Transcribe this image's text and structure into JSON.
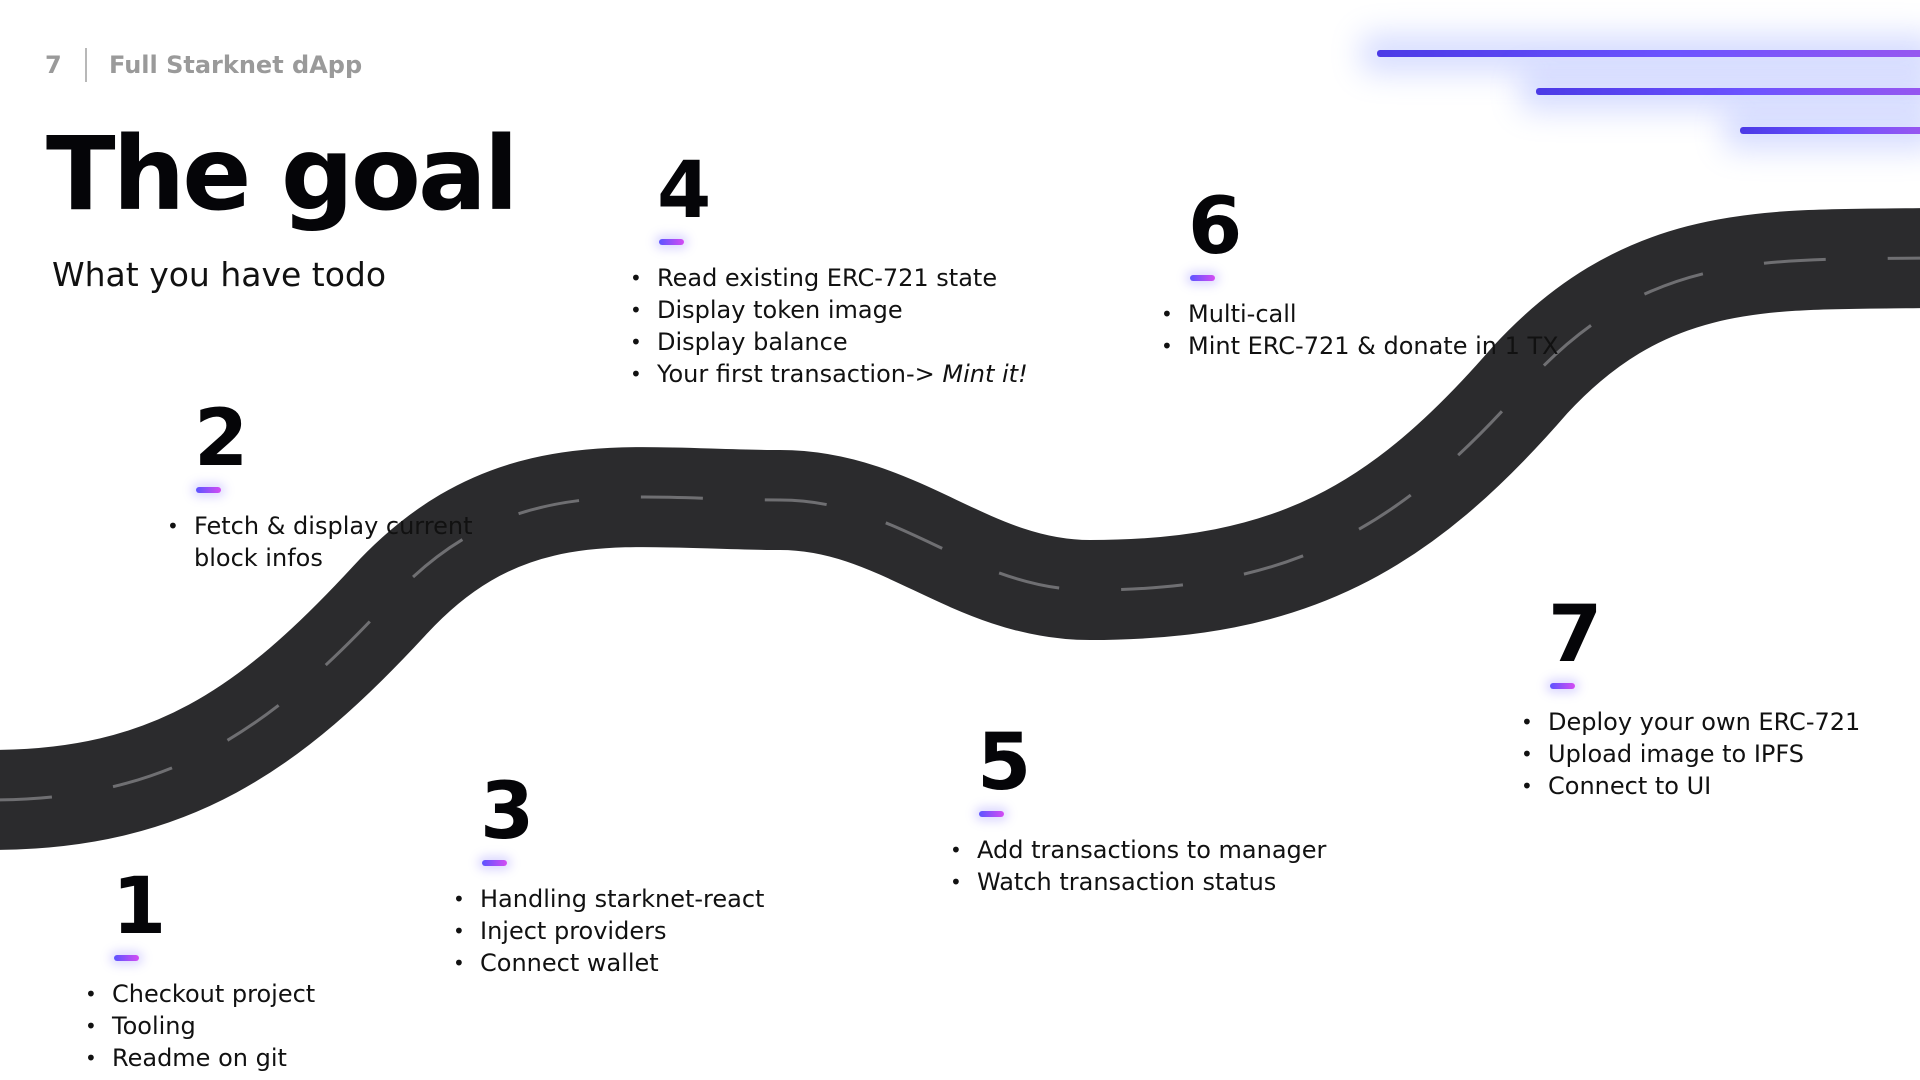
{
  "header": {
    "page_number": "7",
    "section": "Full Starknet dApp"
  },
  "title": "The goal",
  "subtitle": "What you have todo",
  "colors": {
    "road": "#2b2b2d",
    "lane_marking": "#6f6f72",
    "accent_start": "#5b54ff",
    "accent_end": "#d44cf3",
    "decor_line": "#5a4af2"
  },
  "steps": [
    {
      "number": "1",
      "items": [
        "Checkout project",
        "Tooling",
        "Readme on git"
      ]
    },
    {
      "number": "2",
      "items": [
        "Fetch & display current block infos"
      ]
    },
    {
      "number": "3",
      "items": [
        "Handling starknet-react",
        "Inject providers",
        "Connect wallet"
      ]
    },
    {
      "number": "4",
      "items": [
        "Read existing ERC-721 state",
        "Display token image",
        "Display balance"
      ],
      "last_item": {
        "text": "Your first transaction-> ",
        "emphasis": "Mint it!"
      }
    },
    {
      "number": "5",
      "items": [
        "Add transactions to manager",
        "Watch transaction status"
      ]
    },
    {
      "number": "6",
      "items": [
        "Multi-call",
        "Mint ERC-721 & donate in 1 TX"
      ]
    },
    {
      "number": "7",
      "items": [
        "Deploy your own ERC-721",
        "Upload image to IPFS",
        "Connect to UI"
      ]
    }
  ]
}
